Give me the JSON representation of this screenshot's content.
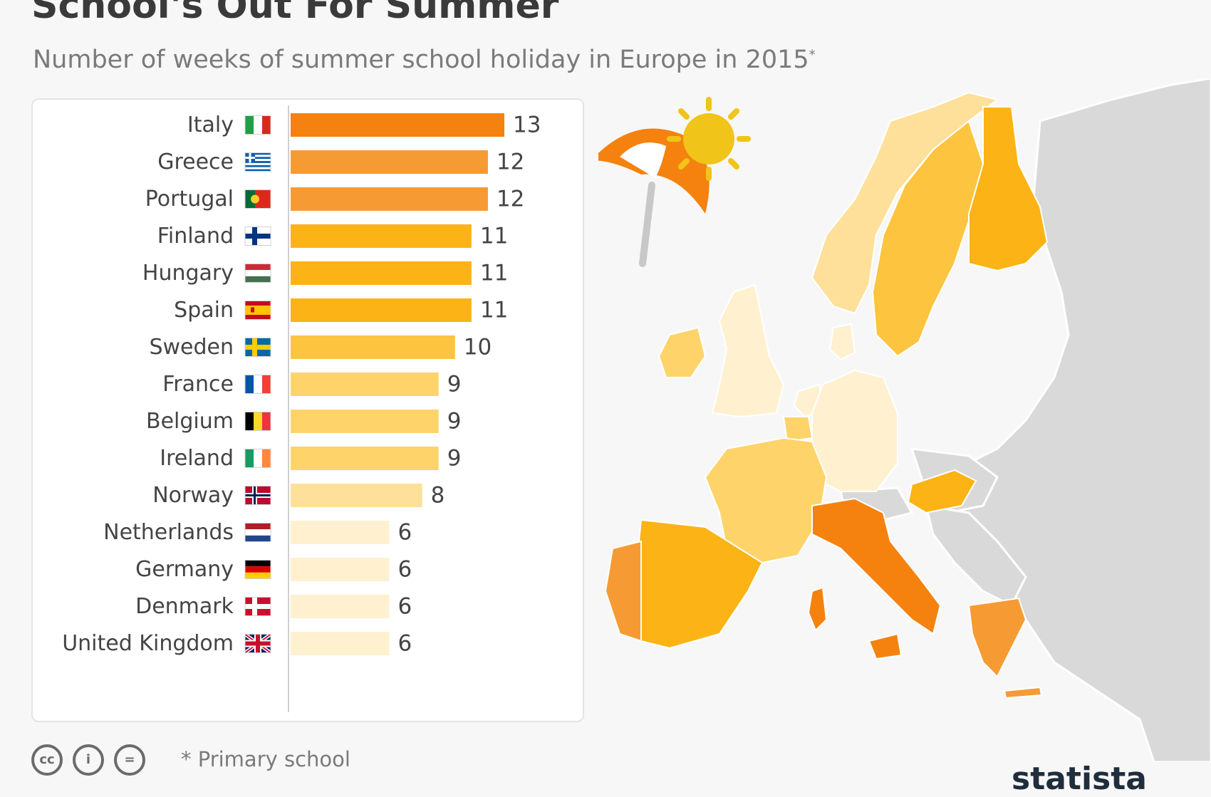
{
  "header": {
    "title": "School's Out For Summer",
    "subtitle": "Number of weeks of summer school holiday in Europe in 2015",
    "subtitle_mark": "*"
  },
  "chart_data": {
    "type": "bar",
    "orientation": "horizontal",
    "title": "School's Out For Summer",
    "subtitle": "Number of weeks of summer school holiday in Europe in 2015*",
    "xlim": [
      0,
      13
    ],
    "grid": false,
    "categories": [
      "Italy",
      "Greece",
      "Portugal",
      "Finland",
      "Hungary",
      "Spain",
      "Sweden",
      "France",
      "Belgium",
      "Ireland",
      "Norway",
      "Netherlands",
      "Germany",
      "Denmark",
      "United Kingdom"
    ],
    "values": [
      13,
      12,
      12,
      11,
      11,
      11,
      10,
      9,
      9,
      9,
      8,
      6,
      6,
      6,
      6
    ],
    "color_scale": {
      "13": "#f5820f",
      "12": "#f69b33",
      "11": "#fcb315",
      "10": "#fdc43f",
      "9": "#fed36a",
      "8": "#fee09a",
      "6": "#fff1cf"
    }
  },
  "flags": [
    "italy-flag-icon",
    "greece-flag-icon",
    "portugal-flag-icon",
    "finland-flag-icon",
    "hungary-flag-icon",
    "spain-flag-icon",
    "sweden-flag-icon",
    "france-flag-icon",
    "belgium-flag-icon",
    "ireland-flag-icon",
    "norway-flag-icon",
    "netherlands-flag-icon",
    "germany-flag-icon",
    "denmark-flag-icon",
    "united-kingdom-flag-icon"
  ],
  "map": {
    "icons": [
      "umbrella-icon",
      "sun-icon"
    ],
    "no_data_color": "#d9d9d9"
  },
  "footer": {
    "footnote": "* Primary school",
    "license_icons": [
      "cc-icon",
      "by-icon",
      "nd-icon"
    ],
    "brand": "statista"
  }
}
